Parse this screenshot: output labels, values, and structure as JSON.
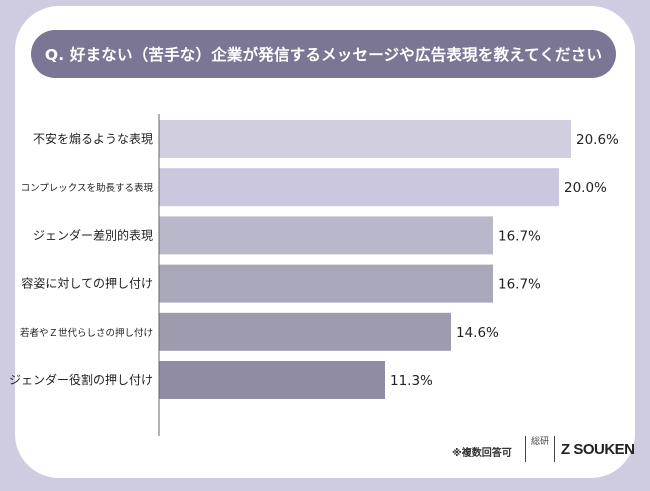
{
  "title": "Q. 好まない（苦手な）企業が発信するメッセージや広告表現を教えてください",
  "note": "※複数回答可",
  "logo": {
    "mark": "総研",
    "text": "Z SOUKEN"
  },
  "chart_data": {
    "type": "bar",
    "orientation": "horizontal",
    "categories": [
      "不安を煽るような表現",
      "コンプレックスを助長する表現",
      "ジェンダー差別的表現",
      "容姿に対しての押し付け",
      "若者やＺ世代らしさの押し付け",
      "ジェンダー役割の押し付け"
    ],
    "values": [
      20.6,
      20.0,
      16.7,
      16.7,
      14.6,
      11.3
    ],
    "data_labels": [
      "20.6%",
      "20.0%",
      "16.7%",
      "16.7%",
      "14.6%",
      "11.3%"
    ],
    "unit": "%",
    "colors": [
      "#d0cedf",
      "#cac7df",
      "#b9b7ca",
      "#a9a7ba",
      "#9e9bae",
      "#8f8ca3"
    ],
    "xlim": [
      0,
      20.6
    ],
    "grid": false
  }
}
